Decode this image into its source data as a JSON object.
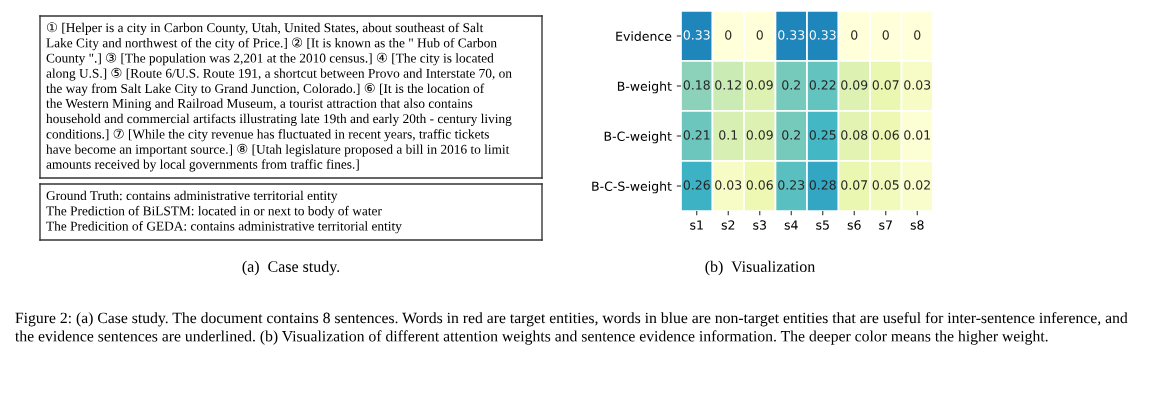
{
  "chart_data": [
    {
      "type": "other",
      "annotations": [
        "① [Helper is a city in Carbon County, Utah, United States, about southeast of Salt",
        "Lake City and northwest of the city of Price.] ② [It is known as the \" Hub of Carbon",
        "County \".] ③ [The population was 2,201 at the 2010 census.] ④ [The city is located",
        "along U.S.] ⑤ [Route 6/U.S. Route 191, a shortcut between Provo and Interstate 70, on",
        "the way from Salt Lake City to Grand Junction, Colorado.] ⑥ [It is the location of",
        "the Western Mining and Railroad Museum, a tourist attraction that also contains",
        "household and commercial artifacts illustrating late 19th and early 20th - century living",
        "conditions.] ⑦ [While the city revenue has fluctuated in recent years, traffic tickets",
        "have become an important source.] ⑧ [Utah legislature proposed a bill in 2016 to limit",
        "amounts received by local governments from traffic fines.]"
      ]
    },
    {
      "type": "other",
      "xlabel": "(a)  Case study.",
      "annotations": [
        "Ground Truth: contains administrative territorial entity",
        "The Prediction of BiLSTM: located in or next to body of water",
        "The Predicition of GEDA: contains administrative territorial entity"
      ]
    },
    {
      "type": "heatmap",
      "xlabel": "(b)  Visualization",
      "data_labels": true,
      "categories": [
        "s1",
        "s2",
        "s3",
        "s4",
        "s5",
        "s6",
        "s7",
        "s8"
      ],
      "y_categories": [
        "Evidence",
        "B-weight",
        "B-C-weight",
        "B-C-S-weight"
      ],
      "cells": [
        [
          0.33,
          0,
          0,
          0.33,
          0.33,
          0,
          0,
          0
        ],
        [
          0.18,
          0.12,
          0.09,
          0.2,
          0.22,
          0.09,
          0.07,
          0.03
        ],
        [
          0.21,
          0.1,
          0.09,
          0.2,
          0.25,
          0.08,
          0.06,
          0.01
        ],
        [
          0.26,
          0.03,
          0.06,
          0.23,
          0.28,
          0.07,
          0.05,
          0.02
        ]
      ],
      "annotations": [
        "Figure 2: (a) Case study. The document contains 8 sentences. Words in red are target entities, words in blue are non-target entities that are useful for inter-sentence inference, and the evidence sentences are underlined. (b) Visualization of different attention weights and sentence evidence information. The deeper color means the higher weight."
      ]
    }
  ]
}
